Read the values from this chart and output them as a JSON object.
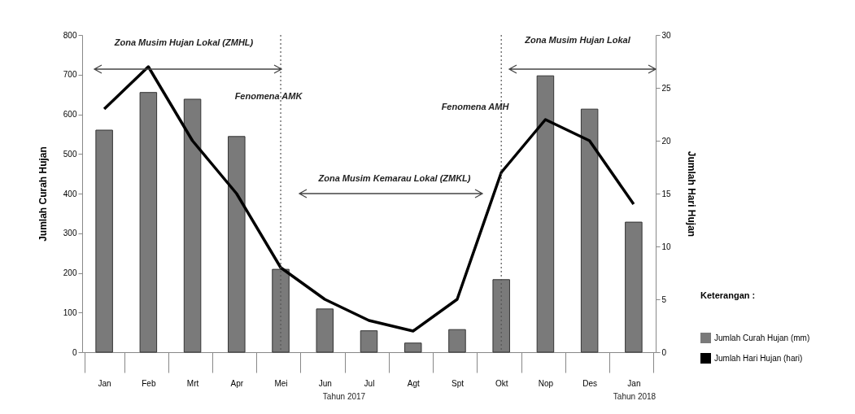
{
  "chart_data": {
    "type": "bar",
    "ylabel": "Jumlah Curah Hujan",
    "y2label": "Jumlah Hari Hujan",
    "legend_title": "Keterangan :",
    "categories": [
      "Jan",
      "Feb",
      "Mrt",
      "Apr",
      "Mei",
      "Jun",
      "Jul",
      "Agt",
      "Spt",
      "Okt",
      "Nop",
      "Des",
      "Jan"
    ],
    "series": [
      {
        "name": "Jumlah Curah Hujan (mm)",
        "color": "#7a7a7a",
        "values": [
          560,
          655,
          638,
          544,
          209,
          109,
          54,
          23,
          57,
          183,
          697,
          613,
          328
        ]
      },
      {
        "name": "Jumlah Hari Hujan (hari)",
        "type": "line",
        "axis": "y2",
        "color": "#000000",
        "values": [
          23,
          27,
          20,
          15,
          8,
          5,
          3,
          2,
          5,
          17,
          22,
          20,
          14
        ]
      }
    ],
    "ylim": [
      0,
      800
    ],
    "yticks": [
      0,
      100,
      200,
      300,
      400,
      500,
      600,
      700,
      800
    ],
    "y2lim": [
      0,
      30
    ],
    "y2ticks": [
      0,
      5,
      10,
      15,
      20,
      25,
      30
    ],
    "ref_lines": [
      {
        "axis": "x",
        "value": "Mei",
        "line_style": "dotted"
      },
      {
        "axis": "x",
        "value": "Okt",
        "line_style": "dotted"
      }
    ],
    "annotations": [
      "Zona Musim Hujan Lokal (ZMHL)",
      "Fenomena  AMK",
      "Zona Musim Kemarau Lokal  (ZMKL)",
      "Fenomena  AMH",
      "Zona Musim Hujan Lokal",
      "Tahun 2017",
      "Tahun 2018"
    ],
    "grid": false,
    "legend": "right",
    "marker": "none",
    "line_style": "solid"
  }
}
